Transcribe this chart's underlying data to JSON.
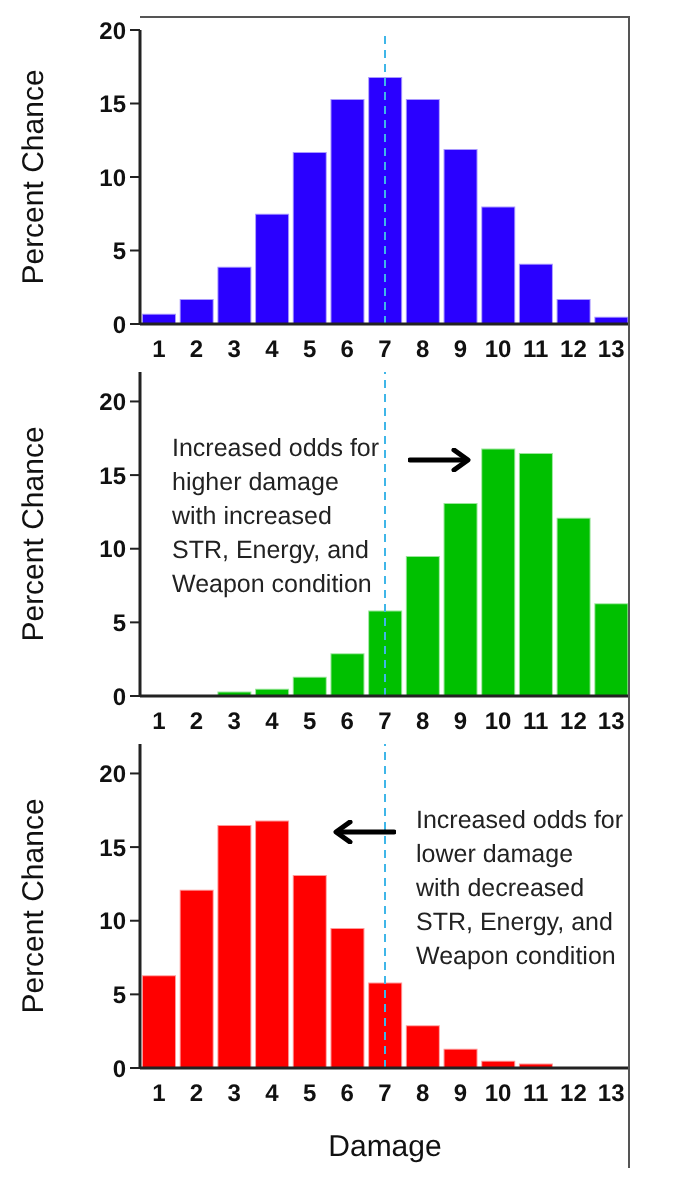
{
  "chart_data": [
    {
      "type": "bar",
      "x": [
        1,
        2,
        3,
        4,
        5,
        6,
        7,
        8,
        9,
        10,
        11,
        12,
        13
      ],
      "xlim": [
        0.5,
        13.5
      ],
      "xticks": [
        1,
        2,
        3,
        4,
        5,
        6,
        7,
        8,
        9,
        10,
        11,
        12,
        13
      ],
      "color": "#2a00ff",
      "values": [
        0.7,
        1.7,
        3.9,
        7.5,
        11.7,
        15.3,
        16.8,
        15.3,
        11.9,
        8.0,
        4.1,
        1.7,
        0.5
      ],
      "ylim": [
        0,
        20
      ],
      "yticks": [
        0,
        5,
        10,
        15,
        20
      ],
      "ylabel": "Percent Chance",
      "grid": false,
      "ref_lines": [
        {
          "axis": "x",
          "value": 7,
          "color": "#3fb6e8",
          "line_style": "dashed"
        }
      ]
    },
    {
      "type": "bar",
      "x": [
        1,
        2,
        3,
        4,
        5,
        6,
        7,
        8,
        9,
        10,
        11,
        12,
        13
      ],
      "xlim": [
        0.5,
        13.5
      ],
      "xticks": [
        1,
        2,
        3,
        4,
        5,
        6,
        7,
        8,
        9,
        10,
        11,
        12,
        13
      ],
      "color": "#00c000",
      "values": [
        0,
        0,
        0.3,
        0.5,
        1.3,
        2.9,
        5.8,
        9.5,
        13.1,
        16.8,
        16.5,
        12.1,
        6.3
      ],
      "ylim": [
        0,
        22
      ],
      "yticks": [
        0,
        5,
        10,
        15,
        20
      ],
      "ylabel": "Percent Chance",
      "grid": false,
      "ref_lines": [
        {
          "axis": "x",
          "value": 7,
          "color": "#3fb6e8",
          "line_style": "dashed"
        }
      ],
      "annotations": [
        "Increased odds for\nhigher damage\nwith increased\nSTR, Energy, and\nWeapon condition"
      ]
    },
    {
      "type": "bar",
      "x": [
        1,
        2,
        3,
        4,
        5,
        6,
        7,
        8,
        9,
        10,
        11,
        12,
        13
      ],
      "xlim": [
        0.5,
        13.5
      ],
      "xticks": [
        1,
        2,
        3,
        4,
        5,
        6,
        7,
        8,
        9,
        10,
        11,
        12,
        13
      ],
      "color": "#ff0000",
      "values": [
        6.3,
        12.1,
        16.5,
        16.8,
        13.1,
        9.5,
        5.8,
        2.9,
        1.3,
        0.5,
        0.3,
        0,
        0
      ],
      "ylim": [
        0,
        22
      ],
      "yticks": [
        0,
        5,
        10,
        15,
        20
      ],
      "ylabel": "Percent Chance",
      "xlabel": "Damage",
      "grid": false,
      "ref_lines": [
        {
          "axis": "x",
          "value": 7,
          "color": "#3fb6e8",
          "line_style": "dashed"
        }
      ],
      "annotations": [
        "Increased odds for\nlower damage\nwith decreased\nSTR, Energy, and\nWeapon condition"
      ]
    }
  ]
}
